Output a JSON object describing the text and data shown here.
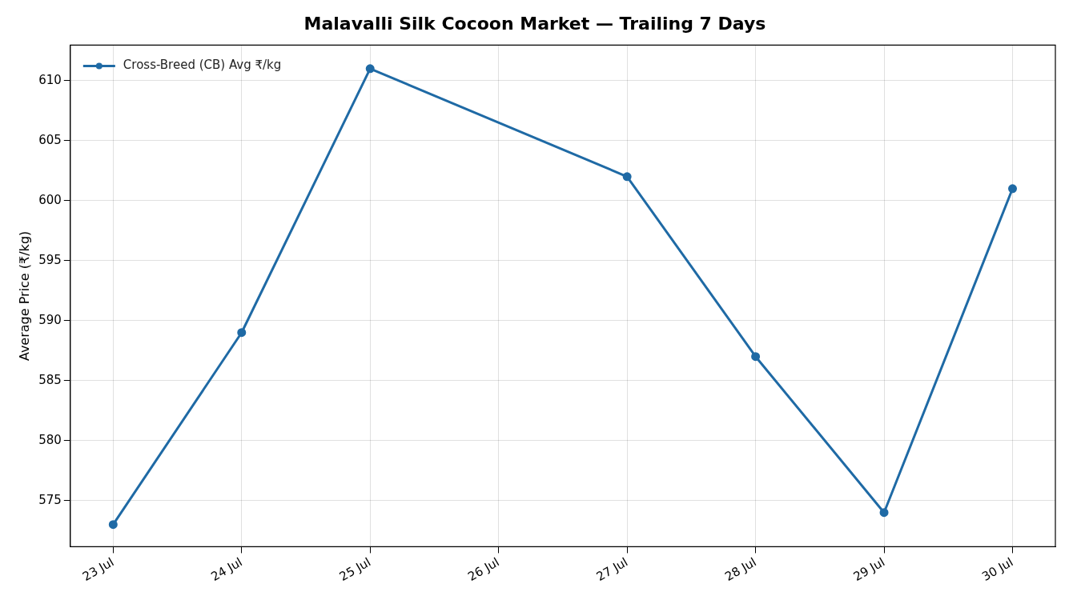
{
  "chart_data": {
    "type": "line",
    "title": "Malavalli Silk Cocoon Market — Trailing 7 Days",
    "ylabel": "Average Price (₹/kg)",
    "x": [
      "--07-23",
      "--07-24",
      "--07-25",
      "--07-27",
      "--07-28",
      "--07-29",
      "--07-30"
    ],
    "series": [
      {
        "name": "Cross-Breed (CB) Avg ₹/kg",
        "color": "#1f6aa5",
        "values": [
          573,
          589,
          611,
          602,
          587,
          574,
          601
        ]
      }
    ],
    "xlim": [
      "--07-22T16:00",
      "--07-30T08:00"
    ],
    "xticks": [
      {
        "value": "--07-23",
        "label": "23 Jul"
      },
      {
        "value": "--07-24",
        "label": "24 Jul"
      },
      {
        "value": "--07-25",
        "label": "25 Jul"
      },
      {
        "value": "--07-26",
        "label": "26 Jul"
      },
      {
        "value": "--07-27",
        "label": "27 Jul"
      },
      {
        "value": "--07-28",
        "label": "28 Jul"
      },
      {
        "value": "--07-29",
        "label": "29 Jul"
      },
      {
        "value": "--07-30",
        "label": "30 Jul"
      }
    ],
    "ylim": [
      571.15,
      612.96
    ],
    "yticks": [
      575,
      580,
      585,
      590,
      595,
      600,
      605,
      610
    ],
    "grid": true,
    "legend": "top left",
    "marker": "circle",
    "line_style": "solid"
  }
}
